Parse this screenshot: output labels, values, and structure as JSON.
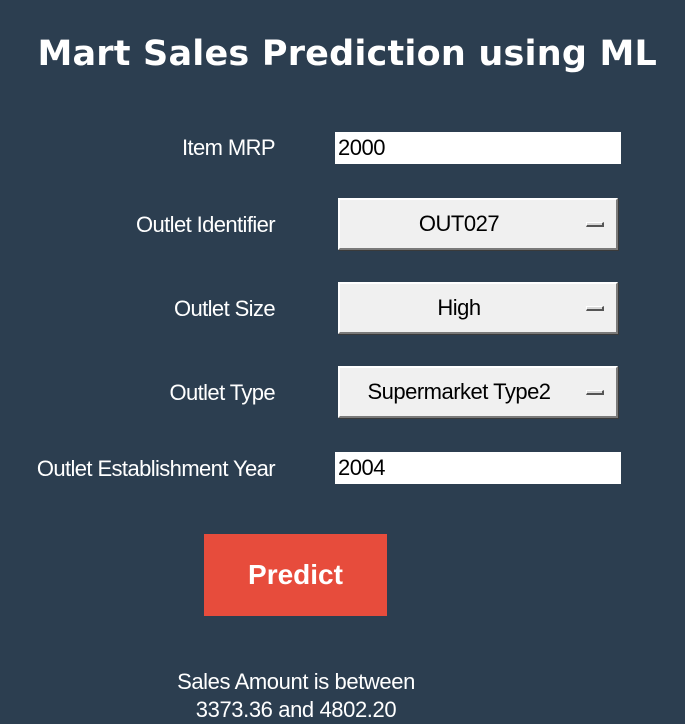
{
  "title": "Mart Sales Prediction using ML",
  "form": {
    "item_mrp": {
      "label": "Item MRP",
      "value": "2000"
    },
    "outlet_identifier": {
      "label": "Outlet Identifier",
      "selected": "OUT027"
    },
    "outlet_size": {
      "label": "Outlet Size",
      "selected": "High"
    },
    "outlet_type": {
      "label": "Outlet Type",
      "selected": "Supermarket Type2"
    },
    "establishment_year": {
      "label": "Outlet Establishment Year",
      "value": "2004"
    }
  },
  "predict_label": "Predict",
  "result": {
    "line1": "Sales Amount is between",
    "line2": "3373.36 and 4802.20"
  },
  "colors": {
    "background": "#2c3e50",
    "button": "#e74c3c",
    "text": "#ffffff"
  }
}
